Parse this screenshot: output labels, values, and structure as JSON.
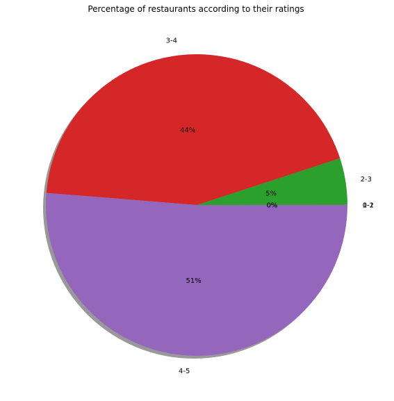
{
  "chart_data": {
    "type": "pie",
    "title": "Percentage of restaurants according to their ratings",
    "categories": [
      "0-1",
      "1-2",
      "2-3",
      "3-4",
      "4-5"
    ],
    "values": [
      0.01,
      0.01,
      5.0,
      43.7,
      51.28
    ],
    "percent_labels": [
      "0%",
      "0%",
      "5%",
      "44%",
      "51%"
    ],
    "colors": [
      "#1f77b4",
      "#ff7f0e",
      "#2ca02c",
      "#d62728",
      "#9467bd"
    ],
    "start_angle_deg": 0,
    "direction": "counterclockwise",
    "shadow": true,
    "legend": "none"
  }
}
